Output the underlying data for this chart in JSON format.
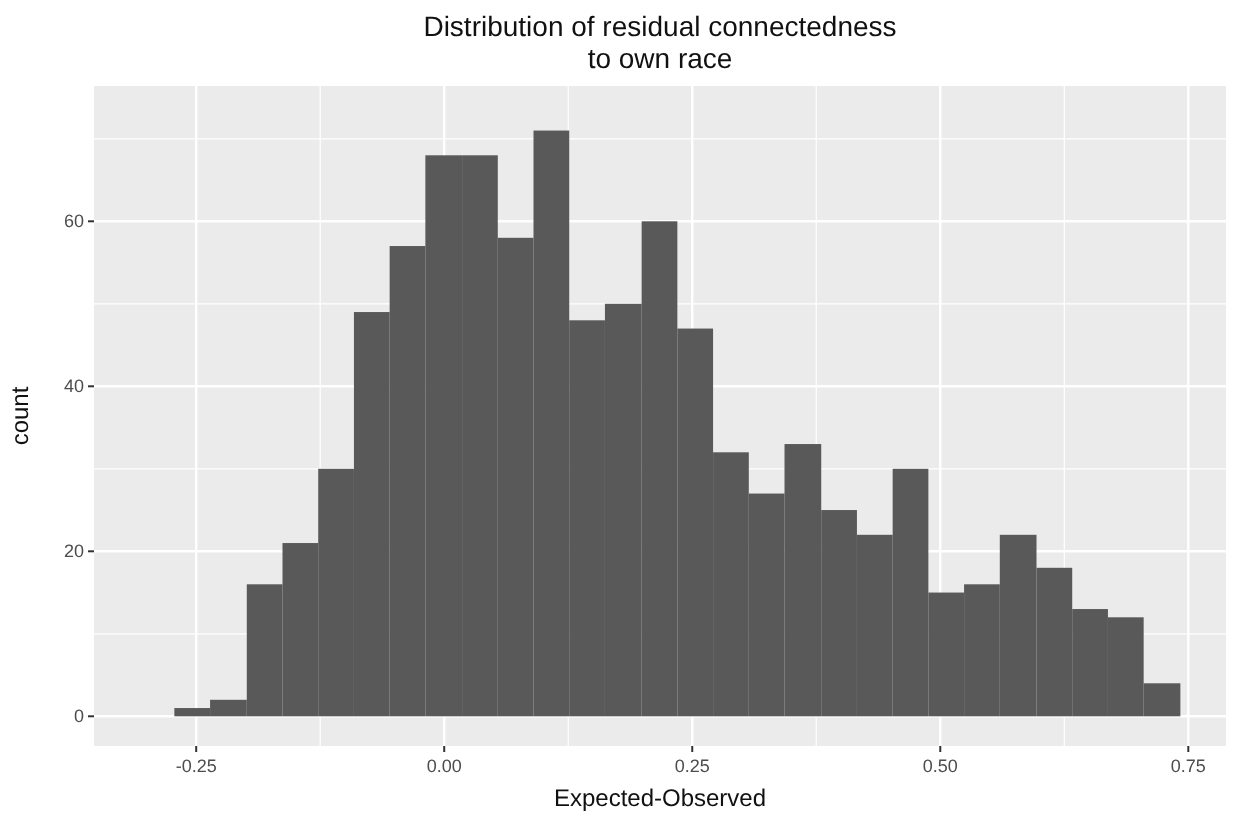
{
  "chart_data": {
    "type": "histogram",
    "title": "Distribution of residual connectedness\nto own race",
    "xlabel": "Expected-Observed",
    "ylabel": "count",
    "color": "#595959",
    "bins": [
      -0.272,
      -0.236,
      -0.199,
      -0.163,
      -0.127,
      -0.091,
      -0.055,
      -0.019,
      0.018,
      0.054,
      0.09,
      0.126,
      0.162,
      0.199,
      0.235,
      0.271,
      0.307,
      0.343,
      0.38,
      0.416,
      0.452,
      0.488,
      0.524,
      0.56,
      0.597,
      0.633,
      0.669,
      0.705,
      0.742
    ],
    "values": [
      1,
      2,
      16,
      21,
      30,
      49,
      57,
      68,
      68,
      58,
      71,
      48,
      50,
      60,
      47,
      32,
      27,
      33,
      25,
      22,
      30,
      15,
      16,
      22,
      18,
      13,
      12,
      4
    ],
    "xlim": [
      -0.353,
      0.788
    ],
    "ylim": [
      -3.6,
      76.4
    ],
    "xticks": [
      {
        "value": -0.25,
        "label": "-0.25"
      },
      {
        "value": 0,
        "label": "0.00"
      },
      {
        "value": 0.25,
        "label": "0.25"
      },
      {
        "value": 0.5,
        "label": "0.50"
      },
      {
        "value": 0.75,
        "label": "0.75"
      }
    ],
    "yticks": [
      0,
      20,
      40,
      60
    ],
    "grid": true
  }
}
